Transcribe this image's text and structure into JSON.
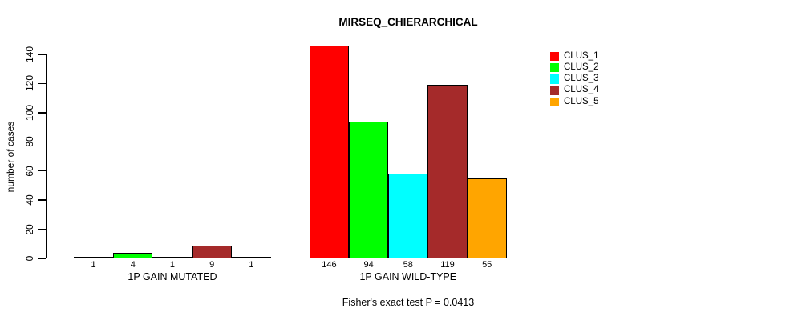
{
  "chart_data": {
    "type": "bar",
    "title": "MIRSEQ_CHIERARCHICAL",
    "ylabel": "number of cases",
    "xlabel": "",
    "ylim": [
      0,
      140
    ],
    "yticks": [
      0,
      20,
      40,
      60,
      80,
      100,
      120,
      140
    ],
    "grid": false,
    "legend_position": "top-right",
    "categories": [
      "1P GAIN MUTATED",
      "1P GAIN WILD-TYPE"
    ],
    "series": [
      {
        "name": "CLUS_1",
        "color": "#FF0000",
        "values": [
          1,
          146
        ]
      },
      {
        "name": "CLUS_2",
        "color": "#00FF00",
        "values": [
          4,
          94
        ]
      },
      {
        "name": "CLUS_3",
        "color": "#00FFFF",
        "values": [
          1,
          58
        ]
      },
      {
        "name": "CLUS_4",
        "color": "#A52A2A",
        "values": [
          9,
          119
        ]
      },
      {
        "name": "CLUS_5",
        "color": "#FFA500",
        "values": [
          1,
          55
        ]
      }
    ],
    "bar_value_labels": {
      "mutated": [
        "1",
        "4",
        "1",
        "9",
        "1"
      ],
      "wild_type": [
        "146",
        "94",
        "58",
        "119",
        "55"
      ]
    },
    "annotation": "Fisher's exact test P = 0.0413"
  }
}
